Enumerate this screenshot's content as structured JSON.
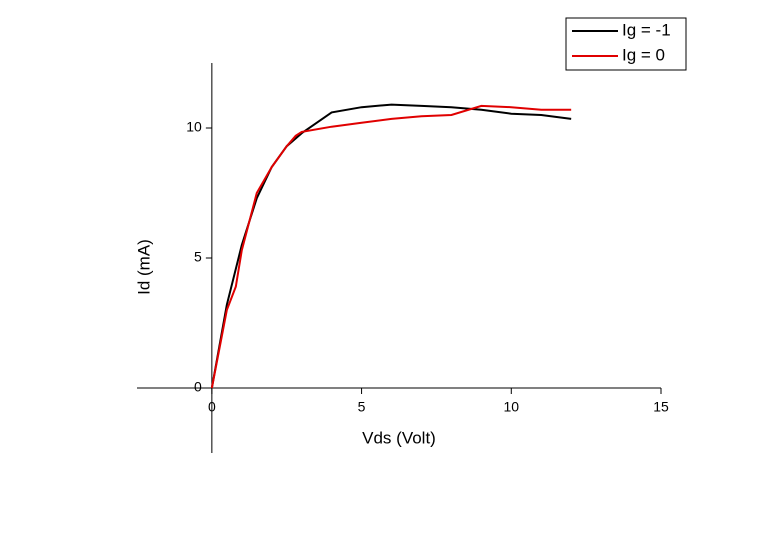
{
  "chart_data": {
    "type": "line",
    "x_label": "Vds (Volt)",
    "y_label": "Id (mA)",
    "xlim": [
      -2.5,
      15
    ],
    "ylim": [
      -2.5,
      12.5
    ],
    "xticks": [
      0,
      5,
      10,
      15
    ],
    "yticks": [
      0,
      5,
      10
    ],
    "legend": "top-right",
    "series": [
      {
        "name": "Ig = -1",
        "color": "#000000",
        "x": [
          0,
          0.5,
          1,
          1.5,
          2,
          2.5,
          3,
          4,
          5,
          6,
          7,
          8,
          9,
          10,
          11,
          12
        ],
        "values": [
          0,
          3.2,
          5.5,
          7.3,
          8.5,
          9.3,
          9.8,
          10.6,
          10.8,
          10.9,
          10.85,
          10.8,
          10.7,
          10.55,
          10.5,
          10.35
        ]
      },
      {
        "name": "Ig = 0",
        "color": "#e00000",
        "x": [
          0,
          0.5,
          0.8,
          1,
          1.5,
          2,
          2.5,
          2.8,
          3,
          4,
          5,
          6,
          7,
          8,
          9,
          10,
          11,
          12
        ],
        "values": [
          0,
          3,
          3.9,
          5.3,
          7.5,
          8.5,
          9.3,
          9.7,
          9.85,
          10.05,
          10.2,
          10.35,
          10.45,
          10.5,
          10.85,
          10.8,
          10.7,
          10.7
        ]
      }
    ]
  }
}
